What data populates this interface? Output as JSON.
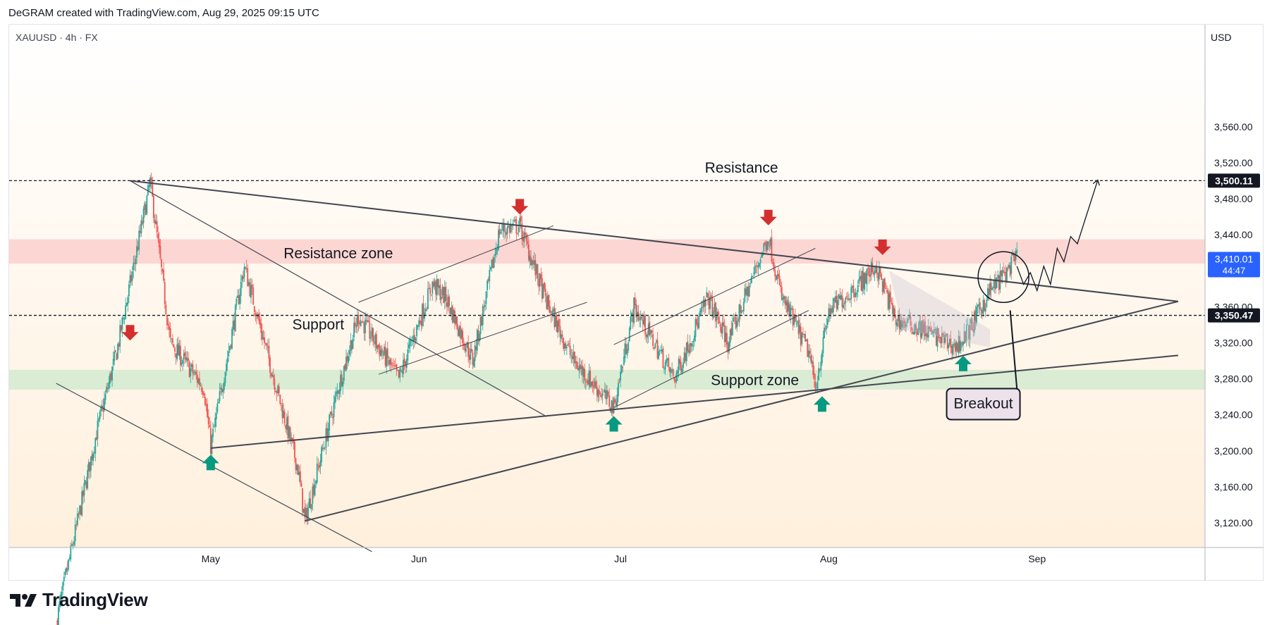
{
  "header": {
    "credit": "DeGRAM created with TradingView.com, Aug 29, 2025 09:15 UTC"
  },
  "symbol_info": "XAUUSD · 4h · FX",
  "currency": "USD",
  "footer": {
    "brand": "TradingView"
  },
  "colors": {
    "up": "#26a69a",
    "down": "#ef5350",
    "resistance_zone": "#fcd0cc",
    "support_zone": "#d4ead0",
    "green_arrow": "#089981",
    "red_arrow": "#d32f2f",
    "blue_label": "#2962ff",
    "breakout_box": "#ede2ea"
  },
  "chart_data": {
    "type": "candlestick",
    "title": "",
    "symbol": "XAUUSD",
    "timeframe": "4h",
    "ylim": [
      3090,
      3590
    ],
    "y_ticks": [
      3120,
      3160,
      3200,
      3240,
      3280,
      3320,
      3360,
      3400,
      3440,
      3480,
      3520,
      3560
    ],
    "y_tick_labels": [
      "3,120.00",
      "3,160.00",
      "3,200.00",
      "3,240.00",
      "3,280.00",
      "3,320.00",
      "3,360.00",
      "3,400.00",
      "3,440.00",
      "3,480.00",
      "3,520.00",
      "3,560.00"
    ],
    "x_range": [
      "2025-04-08",
      "2025-10-01"
    ],
    "x_ticks": [
      {
        "label": "May",
        "date": "2025-05-01"
      },
      {
        "label": "Jun",
        "date": "2025-06-01"
      },
      {
        "label": "Jul",
        "date": "2025-07-01"
      },
      {
        "label": "Aug",
        "date": "2025-08-01"
      },
      {
        "label": "Sep",
        "date": "2025-09-01"
      }
    ],
    "price_path": [
      [
        "2025-04-08",
        3010
      ],
      [
        "2025-04-14",
        3220
      ],
      [
        "2025-04-17",
        3310
      ],
      [
        "2025-04-22",
        3498
      ],
      [
        "2025-04-25",
        3320
      ],
      [
        "2025-04-30",
        3270
      ],
      [
        "2025-05-01",
        3205
      ],
      [
        "2025-05-06",
        3405
      ],
      [
        "2025-05-09",
        3320
      ],
      [
        "2025-05-14",
        3180
      ],
      [
        "2025-05-15",
        3122
      ],
      [
        "2025-05-20",
        3270
      ],
      [
        "2025-05-23",
        3350
      ],
      [
        "2025-05-29",
        3280
      ],
      [
        "2025-06-03",
        3385
      ],
      [
        "2025-06-05",
        3370
      ],
      [
        "2025-06-09",
        3300
      ],
      [
        "2025-06-13",
        3445
      ],
      [
        "2025-06-16",
        3450
      ],
      [
        "2025-06-20",
        3365
      ],
      [
        "2025-06-24",
        3300
      ],
      [
        "2025-06-30",
        3248
      ],
      [
        "2025-07-03",
        3360
      ],
      [
        "2025-07-09",
        3280
      ],
      [
        "2025-07-14",
        3370
      ],
      [
        "2025-07-17",
        3320
      ],
      [
        "2025-07-21",
        3400
      ],
      [
        "2025-07-23",
        3438
      ],
      [
        "2025-07-25",
        3370
      ],
      [
        "2025-07-29",
        3310
      ],
      [
        "2025-07-30",
        3270
      ],
      [
        "2025-08-01",
        3355
      ],
      [
        "2025-08-05",
        3382
      ],
      [
        "2025-08-08",
        3405
      ],
      [
        "2025-08-11",
        3345
      ],
      [
        "2025-08-15",
        3335
      ],
      [
        "2025-08-20",
        3315
      ],
      [
        "2025-08-22",
        3335
      ],
      [
        "2025-08-25",
        3378
      ],
      [
        "2025-08-27",
        3395
      ],
      [
        "2025-08-29",
        3415
      ]
    ],
    "horizontal_levels": [
      {
        "price": 3500.11,
        "label": "3,500.11"
      },
      {
        "price": 3350.47,
        "label": "3,350.47"
      }
    ],
    "last_price": {
      "price": 3410.01,
      "label": "3,410.01",
      "countdown": "44:47"
    },
    "zones": [
      {
        "name": "Resistance zone",
        "low": 3408,
        "high": 3435
      },
      {
        "name": "Support zone",
        "low": 3268,
        "high": 3290
      }
    ],
    "annotations": {
      "resistance": "Resistance",
      "resistance_zone": "Resistance zone",
      "support": "Support",
      "support_zone": "Support zone",
      "breakout": "Breakout"
    },
    "trendlines": [
      {
        "from": [
          "2025-04-19",
          3500
        ],
        "to": [
          "2025-09-22",
          3366
        ]
      },
      {
        "from": [
          "2025-05-01",
          3203
        ],
        "to": [
          "2025-09-22",
          3306
        ]
      },
      {
        "from": [
          "2025-05-15",
          3122
        ],
        "to": [
          "2025-09-22",
          3366
        ]
      },
      {
        "from": [
          "2025-04-08",
          3275
        ],
        "to": [
          "2025-05-25",
          3088
        ]
      },
      {
        "from": [
          "2025-04-19",
          3500
        ],
        "to": [
          "2025-06-20",
          3238
        ]
      }
    ],
    "channels": [
      {
        "from": [
          "2025-05-23",
          3365
        ],
        "to": [
          "2025-06-21",
          3450
        ]
      },
      {
        "from": [
          "2025-05-26",
          3285
        ],
        "to": [
          "2025-06-26",
          3365
        ]
      },
      {
        "from": [
          "2025-06-30",
          3248
        ],
        "to": [
          "2025-07-29",
          3356
        ]
      },
      {
        "from": [
          "2025-06-30",
          3318
        ],
        "to": [
          "2025-07-30",
          3425
        ]
      }
    ],
    "markers": {
      "peaks_red": [
        "2025-04-19",
        "2025-06-16",
        "2025-07-23",
        "2025-08-09"
      ],
      "troughs_green": [
        "2025-05-01",
        "2025-06-30",
        "2025-07-31",
        "2025-08-21"
      ]
    },
    "projection": [
      [
        "2025-08-29",
        3405
      ],
      [
        "2025-08-30",
        3385
      ],
      [
        "2025-08-31",
        3398
      ],
      [
        "2025-09-01",
        3378
      ],
      [
        "2025-09-02",
        3405
      ],
      [
        "2025-09-03",
        3385
      ],
      [
        "2025-09-04",
        3425
      ],
      [
        "2025-09-05",
        3410
      ],
      [
        "2025-09-06",
        3438
      ],
      [
        "2025-09-07",
        3430
      ],
      [
        "2025-09-10",
        3500
      ]
    ]
  }
}
